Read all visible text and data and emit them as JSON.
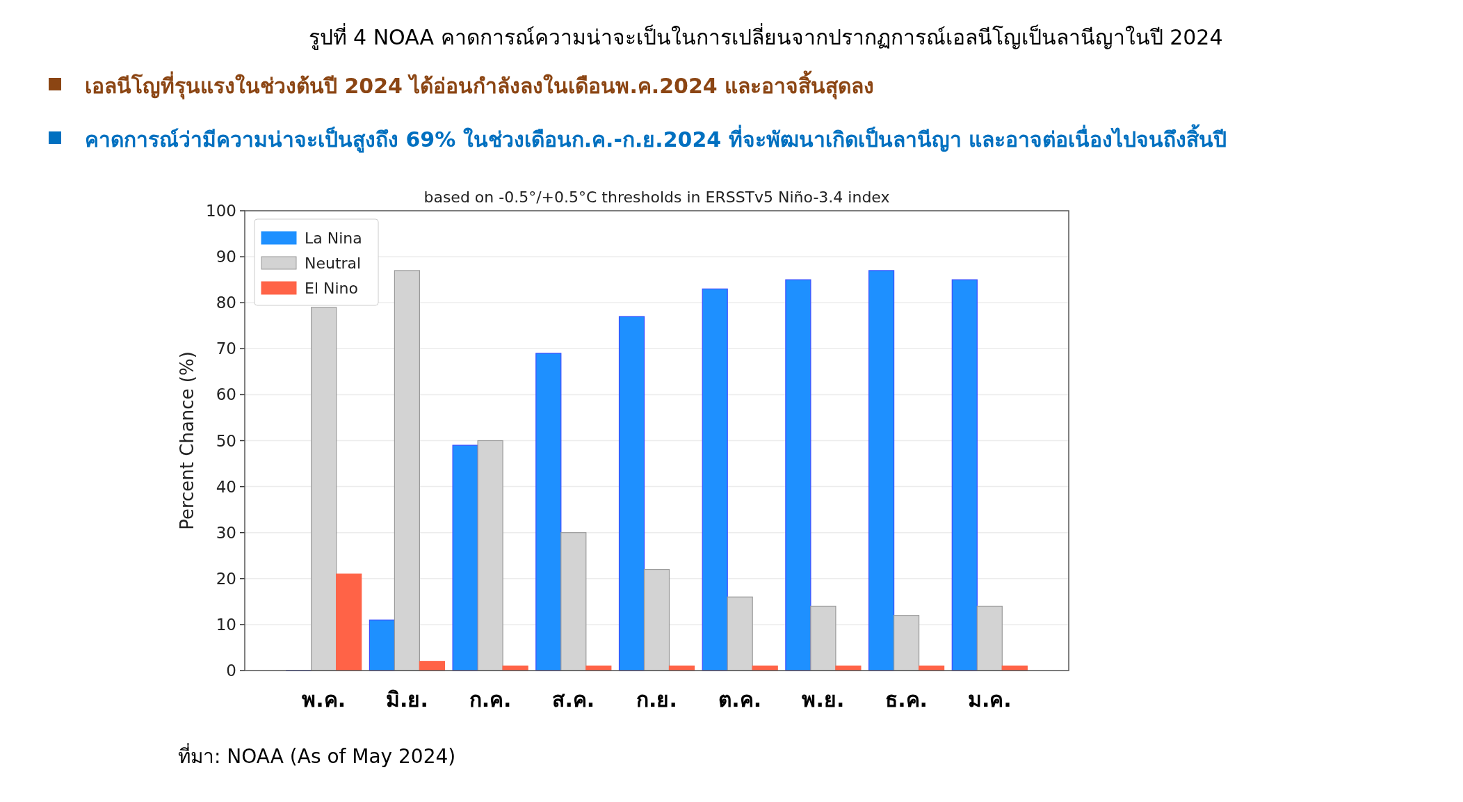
{
  "chart_data": {
    "type": "bar",
    "title": "รูปที่ 4 NOAA คาดการณ์ความน่าจะเป็นในการเปลี่ยนจากปรากฏการณ์เอลนีโญเป็นลานีญาในปี 2024",
    "subtitle": "based on -0.5°/+0.5°C thresholds in ERSSTv5 Niño-3.4 index",
    "ylabel": "Percent Chance (%)",
    "annotations": [
      "เอลนีโญที่รุนแรงในช่วงต้นปี 2024 ได้อ่อนกำลังลงในเดือนพ.ค.2024 และอาจสิ้นสุดลง",
      "คาดการณ์ว่ามีความน่าจะเป็นสูงถึง 69% ในช่วงเดือนก.ค.-ก.ย.2024 ที่จะพัฒนาเกิดเป็นลานีญา และอาจต่อเนื่องไปจนถึงสิ้นปี",
      "ที่มา: NOAA (As of May 2024)"
    ],
    "categories": [
      "พ.ค.",
      "มิ.ย.",
      "ก.ค.",
      "ส.ค.",
      "ก.ย.",
      "ต.ค.",
      "พ.ย.",
      "ธ.ค.",
      "ม.ค."
    ],
    "series": [
      {
        "name": "La Nina",
        "color": "#1e90ff",
        "values": [
          0,
          11,
          49,
          69,
          77,
          83,
          85,
          87,
          85
        ]
      },
      {
        "name": "Neutral",
        "color": "#d3d3d3",
        "values": [
          79,
          87,
          50,
          30,
          22,
          16,
          14,
          12,
          14
        ]
      },
      {
        "name": "El Nino",
        "color": "#ff6347",
        "values": [
          21,
          2,
          1,
          1,
          1,
          1,
          1,
          1,
          1
        ]
      }
    ],
    "ylim": [
      0,
      100
    ],
    "yticks": [
      0,
      10,
      20,
      30,
      40,
      50,
      60,
      70,
      80,
      90,
      100
    ],
    "grid": "y",
    "legend": "top left"
  }
}
